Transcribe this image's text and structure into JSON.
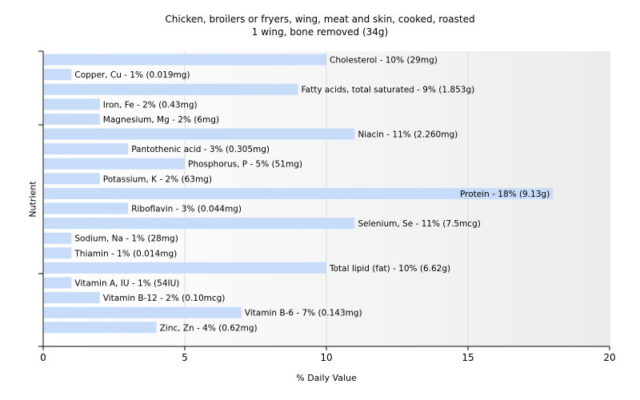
{
  "chart_data": {
    "type": "bar",
    "orientation": "horizontal",
    "title": "Chicken, broilers or fryers, wing, meat and skin, cooked, roasted",
    "subtitle": "1 wing, bone removed (34g)",
    "xlabel": "% Daily Value",
    "ylabel": "Nutrient",
    "xlim": [
      0,
      20
    ],
    "xticks": [
      "0",
      "5",
      "10",
      "15",
      "20"
    ],
    "grid": true,
    "bar_color": "#c6dcf8",
    "categories": [
      "Cholesterol",
      "Copper, Cu",
      "Fatty acids, total saturated",
      "Iron, Fe",
      "Magnesium, Mg",
      "Niacin",
      "Pantothenic acid",
      "Phosphorus, P",
      "Potassium, K",
      "Protein",
      "Riboflavin",
      "Selenium, Se",
      "Sodium, Na",
      "Thiamin",
      "Total lipid (fat)",
      "Vitamin A, IU",
      "Vitamin B-12",
      "Vitamin B-6",
      "Zinc, Zn"
    ],
    "values": [
      10,
      1,
      9,
      2,
      2,
      11,
      3,
      5,
      2,
      18,
      3,
      11,
      1,
      1,
      10,
      1,
      2,
      7,
      4
    ],
    "data_labels": [
      "Cholesterol - 10% (29mg)",
      "Copper, Cu - 1% (0.019mg)",
      "Fatty acids, total saturated - 9% (1.853g)",
      "Iron, Fe - 2% (0.43mg)",
      "Magnesium, Mg - 2% (6mg)",
      "Niacin - 11% (2.260mg)",
      "Pantothenic acid - 3% (0.305mg)",
      "Phosphorus, P - 5% (51mg)",
      "Potassium, K - 2% (63mg)",
      "Protein - 18% (9.13g)",
      "Riboflavin - 3% (0.044mg)",
      "Selenium, Se - 11% (7.5mcg)",
      "Sodium, Na - 1% (28mg)",
      "Thiamin - 1% (0.014mg)",
      "Total lipid (fat) - 10% (6.62g)",
      "Vitamin A, IU - 1% (54IU)",
      "Vitamin B-12 - 2% (0.10mcg)",
      "Vitamin B-6 - 7% (0.143mg)",
      "Zinc, Zn - 4% (0.62mg)"
    ]
  }
}
